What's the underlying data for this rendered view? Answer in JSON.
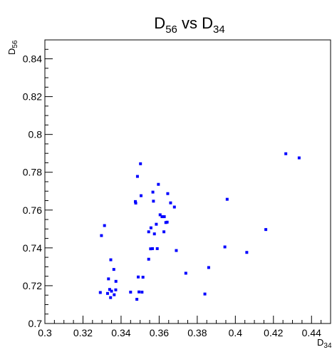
{
  "chart_data": {
    "type": "scatter",
    "title": {
      "base": "D",
      "sub1": "56",
      "mid": " vs D",
      "sub2": "34"
    },
    "xlabel": {
      "base": "D",
      "sub": "34"
    },
    "ylabel": {
      "base": "D",
      "sub": "56"
    },
    "xlim": [
      0.3,
      0.45
    ],
    "ylim": [
      0.7,
      0.85
    ],
    "x_ticks": [
      "0.3",
      "0.32",
      "0.34",
      "0.36",
      "0.38",
      "0.4",
      "0.42",
      "0.44"
    ],
    "x_tick_values": [
      0.3,
      0.32,
      0.34,
      0.36,
      0.38,
      0.4,
      0.42,
      0.44
    ],
    "y_ticks": [
      "0.7",
      "0.72",
      "0.74",
      "0.76",
      "0.78",
      "0.8",
      "0.82",
      "0.84"
    ],
    "y_tick_values": [
      0.7,
      0.72,
      0.74,
      0.76,
      0.78,
      0.8,
      0.82,
      0.84
    ],
    "grid": false,
    "marker_color": "#0000ff",
    "points": [
      [
        0.3291,
        0.7164
      ],
      [
        0.3297,
        0.7465
      ],
      [
        0.3313,
        0.7518
      ],
      [
        0.3329,
        0.7159
      ],
      [
        0.3334,
        0.7236
      ],
      [
        0.334,
        0.718
      ],
      [
        0.3345,
        0.7137
      ],
      [
        0.3346,
        0.7337
      ],
      [
        0.335,
        0.7171
      ],
      [
        0.3362,
        0.7286
      ],
      [
        0.3364,
        0.7152
      ],
      [
        0.3373,
        0.7223
      ],
      [
        0.3372,
        0.7178
      ],
      [
        0.345,
        0.7166
      ],
      [
        0.3475,
        0.7645
      ],
      [
        0.3477,
        0.7637
      ],
      [
        0.3483,
        0.7128
      ],
      [
        0.3486,
        0.7778
      ],
      [
        0.349,
        0.7246
      ],
      [
        0.3494,
        0.7167
      ],
      [
        0.3502,
        0.7845
      ],
      [
        0.3505,
        0.7676
      ],
      [
        0.351,
        0.7166
      ],
      [
        0.3515,
        0.7245
      ],
      [
        0.3545,
        0.734
      ],
      [
        0.3545,
        0.7485
      ],
      [
        0.3555,
        0.7395
      ],
      [
        0.3557,
        0.7506
      ],
      [
        0.3565,
        0.7396
      ],
      [
        0.3567,
        0.7695
      ],
      [
        0.357,
        0.7647
      ],
      [
        0.3575,
        0.7474
      ],
      [
        0.3585,
        0.7525
      ],
      [
        0.359,
        0.7396
      ],
      [
        0.3596,
        0.7736
      ],
      [
        0.3605,
        0.7575
      ],
      [
        0.3615,
        0.7565
      ],
      [
        0.3625,
        0.7485
      ],
      [
        0.3627,
        0.7565
      ],
      [
        0.3635,
        0.7534
      ],
      [
        0.3642,
        0.7536
      ],
      [
        0.3645,
        0.7687
      ],
      [
        0.366,
        0.7638
      ],
      [
        0.368,
        0.7616
      ],
      [
        0.369,
        0.7386
      ],
      [
        0.374,
        0.7266
      ],
      [
        0.384,
        0.7156
      ],
      [
        0.386,
        0.7296
      ],
      [
        0.3945,
        0.7405
      ],
      [
        0.3957,
        0.7657
      ],
      [
        0.406,
        0.7376
      ],
      [
        0.416,
        0.7497
      ],
      [
        0.4265,
        0.7898
      ],
      [
        0.4335,
        0.7876
      ]
    ]
  }
}
